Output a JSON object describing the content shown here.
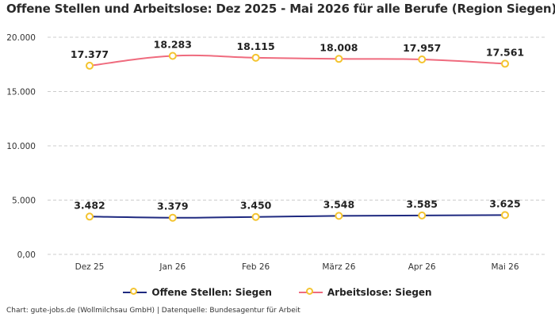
{
  "title": "Offene Stellen und Arbeitslose: Dez 2025 - Mai 2026 für alle Berufe (Region Siegen)",
  "source": "Chart: gute-jobs.de (Wollmilchsau GmbH) | Datenquelle: Bundesagentur für Arbeit",
  "colors": {
    "offene": "#1f2a80",
    "arbeitslose": "#ef6b7e",
    "marker": "#f4c430",
    "grid": "#cccccc"
  },
  "chart_data": {
    "type": "line",
    "title": "Offene Stellen und Arbeitslose: Dez 2025 - Mai 2026 für alle Berufe (Region Siegen)",
    "categories": [
      "Dez 25",
      "Jan 26",
      "Feb 26",
      "März 26",
      "Apr 26",
      "Mai 26"
    ],
    "ylim": [
      0,
      20000
    ],
    "yticks": [
      0,
      5000,
      10000,
      15000,
      20000
    ],
    "ytick_labels": [
      "0,00",
      "5.000",
      "10.000",
      "15.000",
      "20.000"
    ],
    "grid": true,
    "legend_position": "bottom",
    "series": [
      {
        "name": "Offene Stellen: Siegen",
        "values": [
          3482,
          3379,
          3450,
          3548,
          3585,
          3625
        ],
        "labels": [
          "3.482",
          "3.379",
          "3.450",
          "3.548",
          "3.585",
          "3.625"
        ]
      },
      {
        "name": "Arbeitslose: Siegen",
        "values": [
          17377,
          18283,
          18115,
          18008,
          17957,
          17561
        ],
        "labels": [
          "17.377",
          "18.283",
          "18.115",
          "18.008",
          "17.957",
          "17.561"
        ]
      }
    ]
  }
}
